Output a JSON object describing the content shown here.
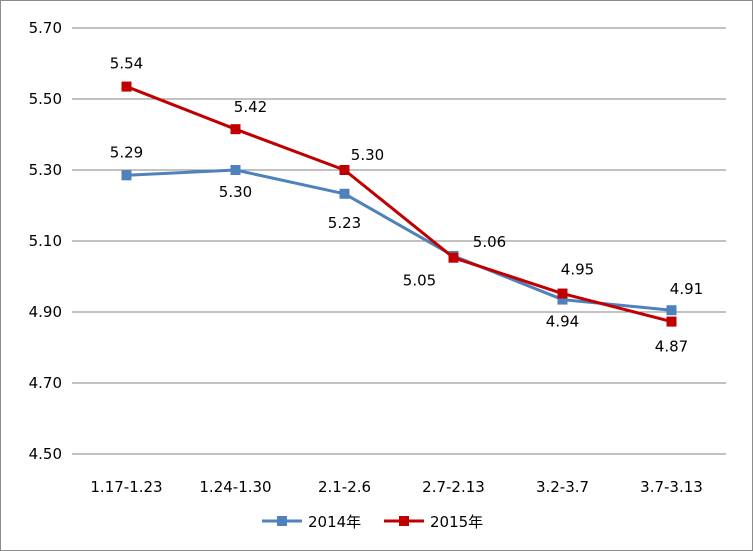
{
  "chart_data": {
    "type": "line",
    "title": "",
    "xlabel": "",
    "ylabel": "",
    "categories": [
      "1.17-1.23",
      "1.24-1.30",
      "2.1-2.6",
      "2.7-2.13",
      "3.2-3.7",
      "3.7-3.13"
    ],
    "ylim": [
      4.5,
      5.7
    ],
    "yticks": [
      "4.50",
      "4.70",
      "4.90",
      "5.10",
      "5.30",
      "5.50",
      "5.70"
    ],
    "grid": true,
    "legend_position": "bottom",
    "series": [
      {
        "name": "2014年",
        "color": "#4f81bd",
        "marker": "square",
        "values": [
          5.285,
          5.3,
          5.233,
          5.058,
          4.935,
          4.905
        ],
        "labels": [
          "5.29",
          "5.30",
          "5.23",
          "5.06",
          "4.94",
          "4.91"
        ]
      },
      {
        "name": "2015年",
        "color": "#c00000",
        "marker": "square",
        "values": [
          5.535,
          5.415,
          5.3,
          5.053,
          4.952,
          4.873
        ],
        "labels": [
          "5.54",
          "5.42",
          "5.30",
          "5.05",
          "4.95",
          "4.87"
        ]
      }
    ]
  }
}
